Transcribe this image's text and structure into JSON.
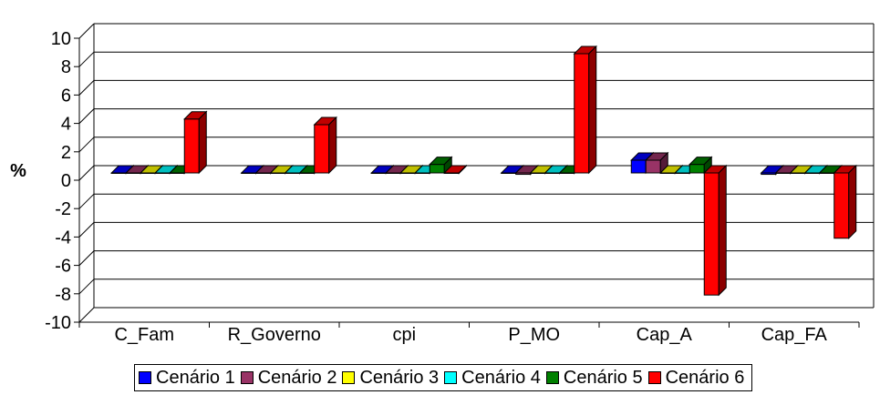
{
  "chart_data": {
    "type": "bar",
    "title": "",
    "xlabel": "",
    "ylabel": "%",
    "ylim": [
      -10,
      10
    ],
    "yticks": [
      10,
      8,
      6,
      4,
      2,
      0,
      -2,
      -4,
      -6,
      -8,
      -10
    ],
    "grid": true,
    "legend_position": "bottom",
    "categories": [
      "C_Fam",
      "R_Governo",
      "cpi",
      "P_MO",
      "Cap_A",
      "Cap_FA"
    ],
    "series": [
      {
        "name": "Cenário 1",
        "color": "#0000ff",
        "values": [
          0,
          0,
          0,
          0,
          0.9,
          -0.1
        ]
      },
      {
        "name": "Cenário 2",
        "color": "#993366",
        "values": [
          0,
          0,
          0,
          -0.1,
          0.9,
          0
        ]
      },
      {
        "name": "Cenário 3",
        "color": "#ffff00",
        "values": [
          0,
          0,
          0,
          0,
          0,
          0
        ]
      },
      {
        "name": "Cenário 4",
        "color": "#00ffff",
        "values": [
          0,
          0,
          0,
          0,
          0,
          0
        ]
      },
      {
        "name": "Cenário 5",
        "color": "#008000",
        "values": [
          0,
          0,
          0.6,
          0,
          0.6,
          0
        ]
      },
      {
        "name": "Cenário 6",
        "color": "#ff0000",
        "values": [
          3.8,
          3.4,
          0,
          8.4,
          -8.6,
          -4.6
        ]
      }
    ]
  }
}
